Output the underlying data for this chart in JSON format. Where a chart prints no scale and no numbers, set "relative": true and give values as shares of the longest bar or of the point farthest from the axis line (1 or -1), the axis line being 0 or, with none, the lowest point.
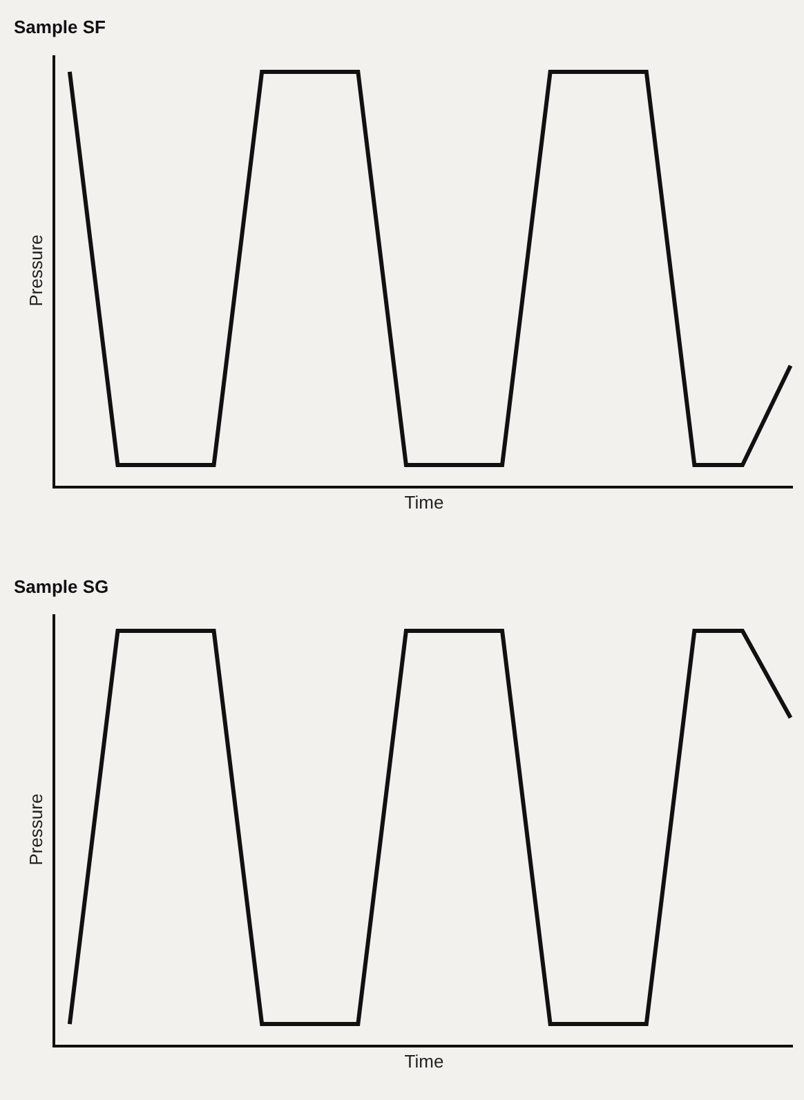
{
  "chart_data": [
    {
      "type": "line",
      "title": "Sample SF",
      "xlabel": "Time",
      "ylabel": "Pressure",
      "relative": true,
      "grid": false,
      "marker": "none",
      "line_style": "solid",
      "categories": [
        null,
        null,
        null,
        null,
        null,
        null,
        null,
        null,
        null,
        null,
        null,
        null,
        null,
        null,
        null,
        null
      ],
      "series": [
        {
          "color": "#111111",
          "values": [
            1,
            0.05,
            0.05,
            0.05,
            1,
            1,
            1,
            0.05,
            0.05,
            0.05,
            1,
            1,
            1,
            0.05,
            0.05,
            0.29
          ]
        }
      ]
    },
    {
      "type": "line",
      "title": "Sample SG",
      "xlabel": "Time",
      "ylabel": "Pressure",
      "relative": true,
      "grid": false,
      "marker": "none",
      "line_style": "solid",
      "categories": [
        null,
        null,
        null,
        null,
        null,
        null,
        null,
        null,
        null,
        null,
        null,
        null,
        null,
        null,
        null,
        null
      ],
      "series": [
        {
          "color": "#111111",
          "values": [
            0.05,
            1,
            1,
            1,
            0.05,
            0.05,
            0.05,
            1,
            1,
            1,
            0.05,
            0.05,
            0.05,
            1,
            1,
            0.79
          ]
        }
      ]
    }
  ]
}
